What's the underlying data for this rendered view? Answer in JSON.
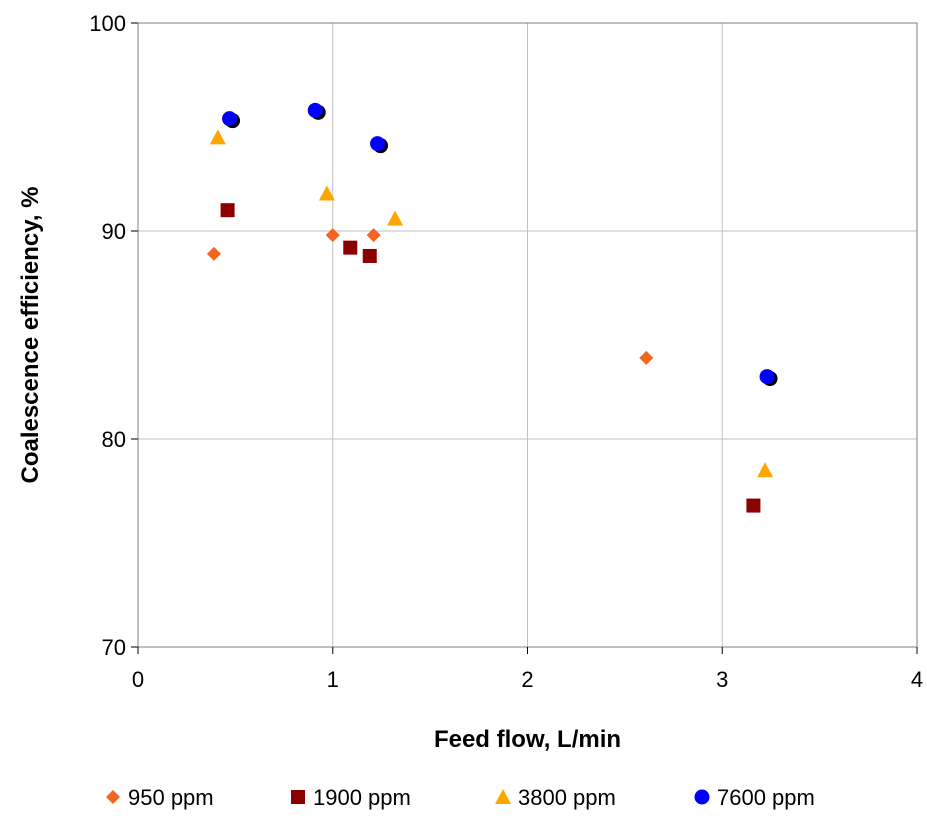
{
  "chart_data": {
    "type": "scatter",
    "title": "",
    "xlabel": "Feed flow, L/min",
    "ylabel": "Coalescence efficiency, %",
    "xlim": [
      0,
      4
    ],
    "ylim": [
      70,
      100
    ],
    "xticks": [
      0,
      1,
      2,
      3,
      4
    ],
    "yticks": [
      70,
      80,
      90,
      100
    ],
    "xtick_labels": [
      "0",
      "1",
      "2",
      "3",
      "4"
    ],
    "ytick_labels": [
      "70",
      "80",
      "90",
      "100"
    ],
    "grid": true,
    "legend_position": "bottom",
    "series": [
      {
        "name": "950 ppm",
        "marker": "diamond",
        "color": "#f26522",
        "points": [
          [
            0.39,
            88.9
          ],
          [
            1.0,
            89.8
          ],
          [
            1.21,
            89.8
          ],
          [
            2.61,
            83.9
          ]
        ]
      },
      {
        "name": "1900 ppm",
        "marker": "square",
        "color": "#8b0000",
        "points": [
          [
            0.46,
            91.0
          ],
          [
            1.09,
            89.2
          ],
          [
            1.19,
            88.8
          ],
          [
            3.16,
            76.8
          ]
        ]
      },
      {
        "name": "3800 ppm",
        "marker": "triangle",
        "color": "#ffa500",
        "points": [
          [
            0.41,
            94.5
          ],
          [
            0.97,
            91.8
          ],
          [
            1.32,
            90.6
          ],
          [
            3.22,
            78.5
          ]
        ]
      },
      {
        "name": "7600 ppm",
        "marker": "circle",
        "color": "#0000ff",
        "shadow_color": "#000000",
        "points": [
          [
            0.47,
            95.4
          ],
          [
            0.91,
            95.8
          ],
          [
            1.23,
            94.2
          ],
          [
            3.23,
            83.0
          ]
        ]
      }
    ]
  }
}
